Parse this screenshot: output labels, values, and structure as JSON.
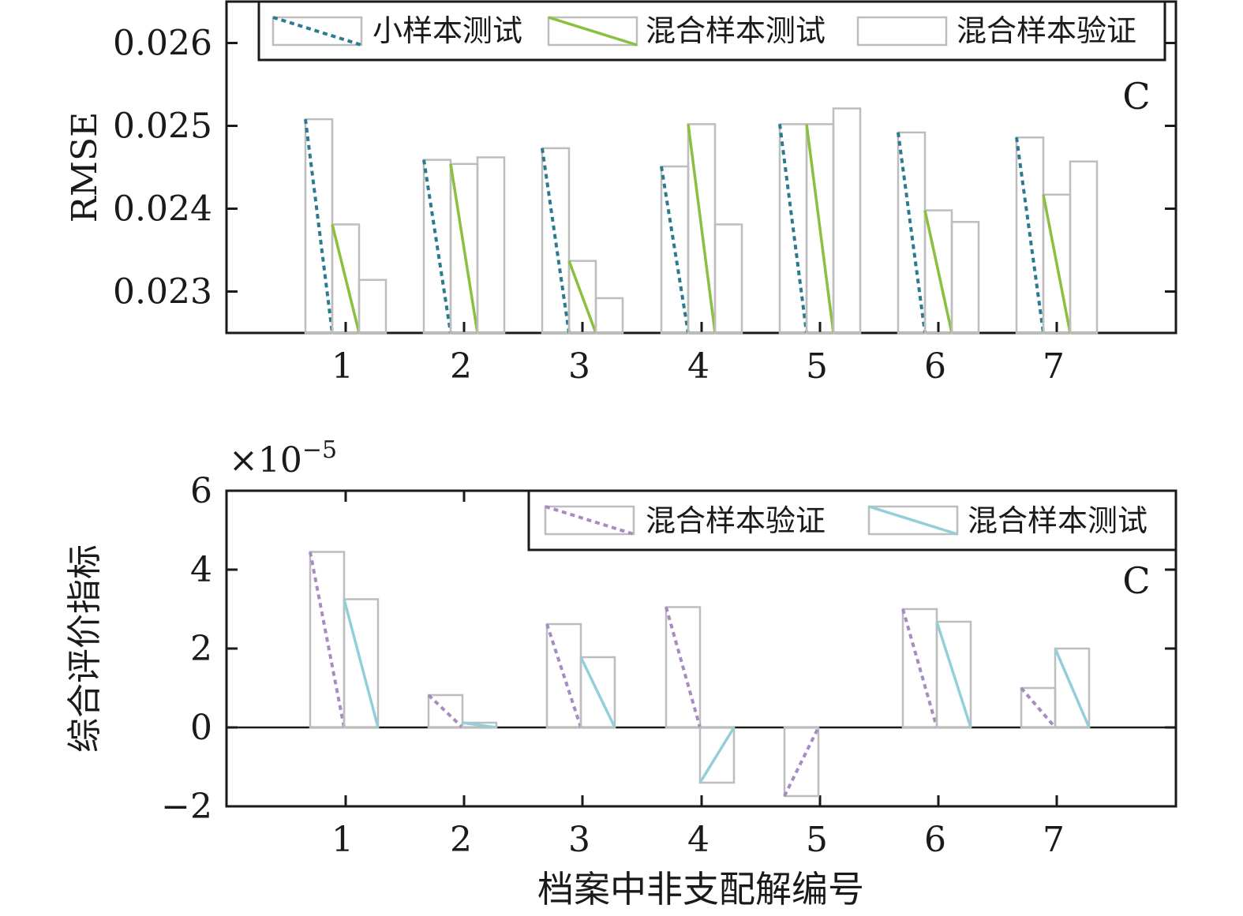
{
  "colors": {
    "small_test": "#2b7a92",
    "mixed_test_top": "#8bbf3f",
    "mixed_validate_bottom": "#a78bc4",
    "mixed_test_bottom": "#93cfd9",
    "bar_outline": "#bdbdbd"
  },
  "xlabel": "档案中非支配解编号",
  "chart_data": [
    {
      "type": "bar",
      "panel_label": "C",
      "ylabel": "RMSE",
      "ylim": [
        0.0225,
        0.0265
      ],
      "yticks": [
        "0.023",
        "0.024",
        "0.025",
        "0.026"
      ],
      "ytick_values": [
        0.023,
        0.024,
        0.025,
        0.026
      ],
      "categories": [
        "1",
        "2",
        "3",
        "4",
        "5",
        "6",
        "7"
      ],
      "legend_position": "top",
      "series": [
        {
          "name": "小样本测试",
          "style": "dotted",
          "values": [
            0.02508,
            0.02459,
            0.02473,
            0.02451,
            0.02502,
            0.02492,
            0.02486
          ]
        },
        {
          "name": "混合样本测试",
          "style": "solid",
          "values": [
            0.02381,
            0.02454,
            0.02337,
            0.02502,
            0.02502,
            0.02398,
            0.02417
          ]
        },
        {
          "name": "混合样本验证",
          "style": "none",
          "values": [
            0.02314,
            0.02462,
            0.02292,
            0.02381,
            0.02521,
            0.02384,
            0.02457
          ]
        }
      ]
    },
    {
      "type": "bar",
      "panel_label": "C",
      "ylabel": "综合评价指标",
      "multiplier": "×10",
      "multiplier_exp": "−5",
      "ylim": [
        -2,
        6
      ],
      "yticks": [
        "−2",
        "0",
        "2",
        "4",
        "6"
      ],
      "ytick_values": [
        -2,
        0,
        2,
        4,
        6
      ],
      "categories": [
        "1",
        "2",
        "3",
        "4",
        "5",
        "6",
        "7"
      ],
      "legend_position": "top-right",
      "series": [
        {
          "name": "混合样本验证",
          "style": "dotted",
          "values": [
            4.45,
            0.82,
            2.62,
            3.05,
            -1.74,
            3.0,
            1.0
          ]
        },
        {
          "name": "混合样本测试",
          "style": "solid",
          "values": [
            3.25,
            0.12,
            1.78,
            -1.4,
            null,
            2.68,
            2.0
          ]
        }
      ]
    }
  ]
}
